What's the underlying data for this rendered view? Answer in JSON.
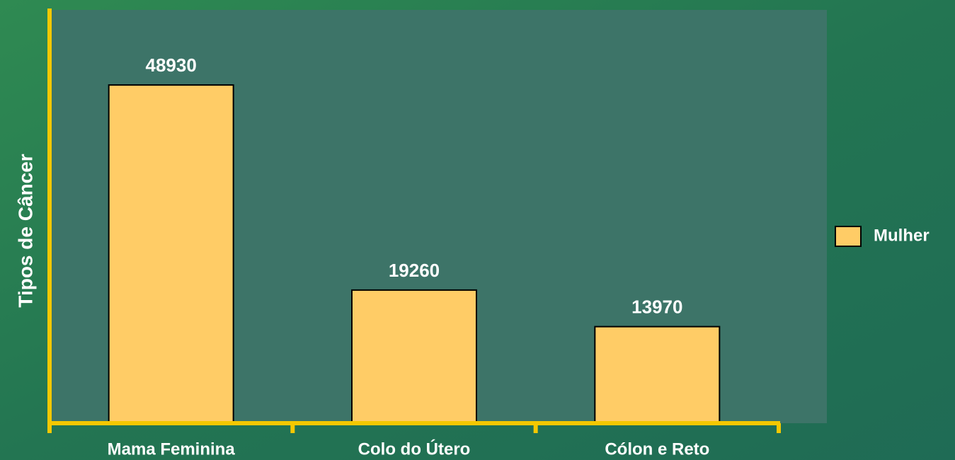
{
  "chart_data": {
    "type": "bar",
    "categories": [
      "Mama Feminina",
      "Colo do Útero",
      "Cólon e Reto"
    ],
    "series": [
      {
        "name": "Mulher",
        "color": "#ffcc66",
        "values": [
          48930,
          19260,
          13970
        ]
      }
    ],
    "ylabel": "Tipos de Câncer",
    "ylim": [
      0,
      60000
    ],
    "legend": "right"
  }
}
